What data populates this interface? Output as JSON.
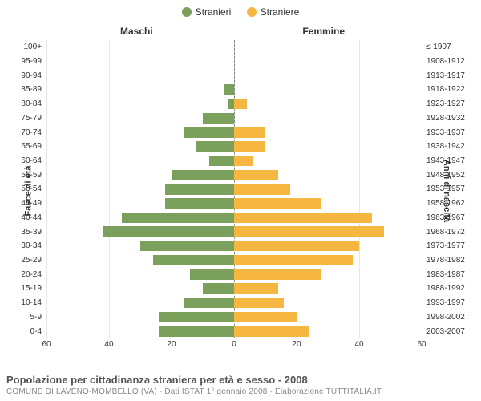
{
  "legend": {
    "male": {
      "label": "Stranieri",
      "color": "#7ba05b"
    },
    "female": {
      "label": "Straniere",
      "color": "#f5b642"
    }
  },
  "headers": {
    "left": "Maschi",
    "right": "Femmine"
  },
  "axis_labels": {
    "left": "Fasce di età",
    "right": "Anni di nascita"
  },
  "chart": {
    "type": "population-pyramid",
    "xlim": 60,
    "xtick_step": 20,
    "xticks_left": [
      60,
      40,
      20,
      0
    ],
    "xticks_right": [
      0,
      20,
      40,
      60
    ],
    "background_color": "#ffffff",
    "grid_color": "#e6e6e6",
    "bar_color_male": "#7ba05b",
    "bar_color_female": "#f5b642",
    "label_fontsize": 10,
    "rows": [
      {
        "age": "100+",
        "birth": "≤ 1907",
        "m": 0,
        "f": 0
      },
      {
        "age": "95-99",
        "birth": "1908-1912",
        "m": 0,
        "f": 0
      },
      {
        "age": "90-94",
        "birth": "1913-1917",
        "m": 0,
        "f": 0
      },
      {
        "age": "85-89",
        "birth": "1918-1922",
        "m": 3,
        "f": 0
      },
      {
        "age": "80-84",
        "birth": "1923-1927",
        "m": 2,
        "f": 4
      },
      {
        "age": "75-79",
        "birth": "1928-1932",
        "m": 10,
        "f": 0
      },
      {
        "age": "70-74",
        "birth": "1933-1937",
        "m": 16,
        "f": 10
      },
      {
        "age": "65-69",
        "birth": "1938-1942",
        "m": 12,
        "f": 10
      },
      {
        "age": "60-64",
        "birth": "1943-1947",
        "m": 8,
        "f": 6
      },
      {
        "age": "55-59",
        "birth": "1948-1952",
        "m": 20,
        "f": 14
      },
      {
        "age": "50-54",
        "birth": "1953-1957",
        "m": 22,
        "f": 18
      },
      {
        "age": "45-49",
        "birth": "1958-1962",
        "m": 22,
        "f": 28
      },
      {
        "age": "40-44",
        "birth": "1963-1967",
        "m": 36,
        "f": 44
      },
      {
        "age": "35-39",
        "birth": "1968-1972",
        "m": 42,
        "f": 48
      },
      {
        "age": "30-34",
        "birth": "1973-1977",
        "m": 30,
        "f": 40
      },
      {
        "age": "25-29",
        "birth": "1978-1982",
        "m": 26,
        "f": 38
      },
      {
        "age": "20-24",
        "birth": "1983-1987",
        "m": 14,
        "f": 28
      },
      {
        "age": "15-19",
        "birth": "1988-1992",
        "m": 10,
        "f": 14
      },
      {
        "age": "10-14",
        "birth": "1993-1997",
        "m": 16,
        "f": 16
      },
      {
        "age": "5-9",
        "birth": "1998-2002",
        "m": 24,
        "f": 20
      },
      {
        "age": "0-4",
        "birth": "2003-2007",
        "m": 24,
        "f": 24
      }
    ]
  },
  "footer": {
    "title": "Popolazione per cittadinanza straniera per età e sesso - 2008",
    "subtitle": "COMUNE DI LAVENO-MOMBELLO (VA) - Dati ISTAT 1° gennaio 2008 - Elaborazione TUTTITALIA.IT"
  }
}
